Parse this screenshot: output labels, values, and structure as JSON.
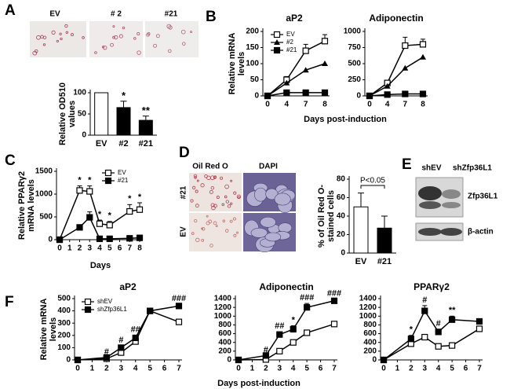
{
  "panel_labels": [
    "A",
    "B",
    "C",
    "D",
    "E",
    "F"
  ],
  "panel_a_images": {
    "labels": [
      "EV",
      "# 2",
      "#21"
    ]
  },
  "panel_d_images": {
    "columns": [
      "Oil Red O",
      "DAPI"
    ],
    "rows": [
      "#21",
      "EV"
    ]
  },
  "panel_e_blot": {
    "lanes": [
      "shEV",
      "shZfp36L1"
    ],
    "bands": [
      "Zfp36L1",
      "β-actin"
    ]
  },
  "chart_data": [
    {
      "type": "bar",
      "ylabel": [
        "Relative OD510",
        "values"
      ],
      "categories": [
        "EV",
        "#2",
        "#21"
      ],
      "values": [
        100,
        65,
        35
      ],
      "errors": [
        null,
        15,
        10
      ],
      "colors": [
        "#ffffff",
        "#000000",
        "#000000"
      ],
      "ylim": [
        0,
        100
      ],
      "yticks": [
        0,
        50,
        100
      ],
      "annotations": [
        null,
        "*",
        "**"
      ]
    },
    {
      "type": "line",
      "title": "aP2",
      "ylabel": [
        "Relative mRNA",
        "levels"
      ],
      "xlabel": "Days post-induction",
      "categories": [
        "0",
        "4",
        "7",
        "8"
      ],
      "ylim": [
        0,
        200
      ],
      "yticks": [
        0,
        50,
        100,
        150,
        200
      ],
      "legend": "upper left",
      "series": [
        {
          "name": "EV",
          "color": "#000000",
          "marker": "square-open",
          "values": [
            0,
            50,
            140,
            170
          ],
          "errors": [
            null,
            10,
            20,
            20
          ]
        },
        {
          "name": "#2",
          "color": "#000000",
          "marker": "triangle",
          "values": [
            0,
            40,
            80,
            100
          ],
          "errors": [
            null,
            null,
            null,
            null
          ]
        },
        {
          "name": "#21",
          "color": "#000000",
          "marker": "square",
          "values": [
            0,
            10,
            10,
            10
          ],
          "errors": [
            null,
            null,
            null,
            null
          ]
        }
      ]
    },
    {
      "type": "line",
      "title": "Adiponectin",
      "categories": [
        "0",
        "4",
        "7",
        "8"
      ],
      "ylim": [
        0,
        1000
      ],
      "yticks": [
        0,
        250,
        500,
        750,
        1000
      ],
      "series": [
        {
          "name": "EV",
          "color": "#000000",
          "marker": "square-open",
          "values": [
            0,
            200,
            780,
            800
          ],
          "errors": [
            null,
            40,
            130,
            80
          ]
        },
        {
          "name": "#2",
          "color": "#000000",
          "marker": "triangle",
          "values": [
            0,
            150,
            430,
            600
          ],
          "errors": [
            null,
            null,
            null,
            null
          ]
        },
        {
          "name": "#21",
          "color": "#000000",
          "marker": "square",
          "values": [
            0,
            20,
            30,
            30
          ],
          "errors": [
            null,
            null,
            null,
            null
          ]
        }
      ]
    },
    {
      "type": "line",
      "ylabel": [
        "Relative PPARγ2",
        "mRNA levels"
      ],
      "xlabel": "Days",
      "x": [
        0,
        2,
        3,
        4,
        5,
        7,
        8
      ],
      "xlim": [
        0,
        8
      ],
      "xticks": [
        0,
        1,
        2,
        3,
        4,
        5,
        6,
        7,
        8
      ],
      "ylim": [
        0,
        1500
      ],
      "yticks": [
        0,
        500,
        1000,
        1500
      ],
      "legend": "upper right",
      "annotations": [
        null,
        "*",
        "*",
        "*",
        "*",
        "*",
        "*"
      ],
      "series": [
        {
          "name": "EV",
          "color": "#000000",
          "marker": "square-open",
          "values": [
            0,
            1080,
            1060,
            350,
            320,
            620,
            660
          ],
          "errors": [
            null,
            100,
            120,
            80,
            80,
            150,
            150
          ]
        },
        {
          "name": "#21",
          "color": "#000000",
          "marker": "square",
          "values": [
            0,
            270,
            490,
            20,
            20,
            30,
            40
          ],
          "errors": [
            null,
            null,
            120,
            null,
            null,
            null,
            null
          ]
        }
      ]
    },
    {
      "type": "bar",
      "ylabel": [
        "% of Oil Red O-",
        "stained cells"
      ],
      "categories": [
        "EV",
        "#21"
      ],
      "values": [
        50,
        27
      ],
      "errors": [
        15,
        13
      ],
      "colors": [
        "#ffffff",
        "#000000"
      ],
      "ylim": [
        0,
        80
      ],
      "yticks": [
        0,
        20,
        40,
        60,
        80
      ],
      "bracket_label": "P<0.05"
    },
    {
      "type": "line",
      "title": "aP2",
      "ylabel": [
        "Relative mRNA",
        "levels"
      ],
      "xlabel": "Days post-induction",
      "x": [
        0,
        2,
        3,
        4,
        5,
        7
      ],
      "xlim": [
        0,
        7
      ],
      "xticks": [
        0,
        1,
        2,
        3,
        4,
        5,
        6,
        7
      ],
      "ylim": [
        0,
        500
      ],
      "yticks": [
        0,
        100,
        200,
        300,
        400,
        500
      ],
      "legend": "upper left",
      "annotations": [
        null,
        "#",
        "#",
        "##",
        null,
        "###"
      ],
      "series": [
        {
          "name": "shEV",
          "color": "#000000",
          "marker": "square-open",
          "values": [
            0,
            10,
            60,
            150,
            400,
            310
          ],
          "errors": [
            null,
            null,
            15,
            20,
            20,
            20
          ]
        },
        {
          "name": "shZfp36L1",
          "color": "#000000",
          "marker": "square",
          "values": [
            0,
            20,
            100,
            180,
            400,
            440
          ],
          "errors": [
            null,
            null,
            15,
            20,
            20,
            15
          ]
        }
      ]
    },
    {
      "type": "line",
      "title": "Adiponectin",
      "x": [
        0,
        2,
        3,
        4,
        5,
        7
      ],
      "xlim": [
        0,
        7
      ],
      "xticks": [
        0,
        1,
        2,
        3,
        4,
        5,
        6,
        7
      ],
      "ylim": [
        0,
        1400
      ],
      "yticks": [
        0,
        200,
        400,
        600,
        800,
        1000,
        1200,
        1400
      ],
      "annotations": [
        null,
        "#",
        "##",
        "*",
        "###",
        "###"
      ],
      "series": [
        {
          "name": "shEV",
          "color": "#000000",
          "marker": "square-open",
          "values": [
            0,
            10,
            200,
            400,
            620,
            820
          ],
          "errors": [
            null,
            null,
            30,
            40,
            40,
            40
          ]
        },
        {
          "name": "shZfp36L1",
          "color": "#000000",
          "marker": "square",
          "values": [
            0,
            100,
            580,
            700,
            1200,
            1350
          ],
          "errors": [
            null,
            null,
            60,
            80,
            90,
            40
          ]
        }
      ]
    },
    {
      "type": "line",
      "title": "PPARγ2",
      "x": [
        0,
        2,
        3,
        4,
        5,
        7
      ],
      "xlim": [
        0,
        7
      ],
      "xticks": [
        0,
        1,
        2,
        3,
        4,
        5,
        6,
        7
      ],
      "ylim": [
        0,
        1400
      ],
      "yticks": [
        0,
        200,
        400,
        600,
        800,
        1000,
        1200,
        1400
      ],
      "annotations": [
        null,
        "*",
        "#",
        "#",
        "**",
        null
      ],
      "series": [
        {
          "name": "shEV",
          "color": "#000000",
          "marker": "square-open",
          "values": [
            0,
            370,
            520,
            310,
            330,
            710
          ],
          "errors": [
            null,
            60,
            null,
            null,
            40,
            60
          ]
        },
        {
          "name": "shZfp36L1",
          "color": "#000000",
          "marker": "square",
          "values": [
            0,
            480,
            1120,
            640,
            920,
            880
          ],
          "errors": [
            null,
            80,
            120,
            60,
            80,
            50
          ]
        }
      ]
    }
  ]
}
